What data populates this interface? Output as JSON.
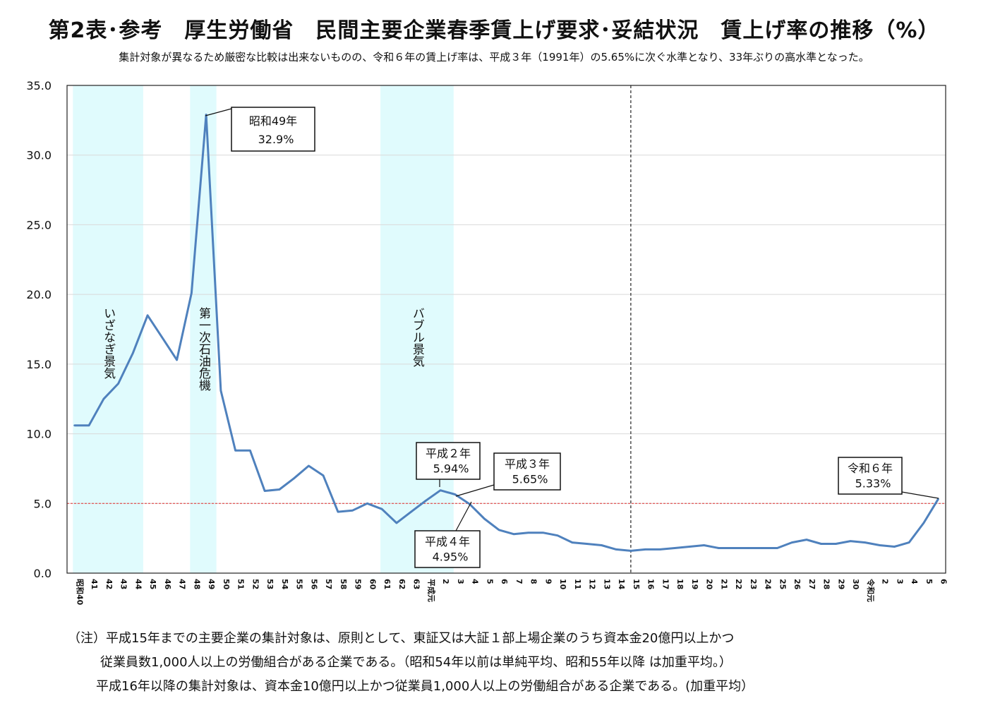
{
  "chart_data": {
    "type": "line",
    "title": "第2表･参考　厚生労働省　民間主要企業春季賃上げ要求･妥結状況　賃上げ率の推移（%）",
    "subtitle": "集計対象が異なるため厳密な比較は出来ないものの、令和６年の賃上げ率は、平成３年（1991年）の5.65%に次ぐ水準となり、33年ぶりの高水準となった。",
    "ylim": [
      0,
      35
    ],
    "y_ticks": [
      "0.0",
      "5.0",
      "10.0",
      "15.0",
      "20.0",
      "25.0",
      "30.0",
      "35.0"
    ],
    "grid": true,
    "reference_line": 5.0,
    "categories": [
      "昭和40",
      "41",
      "42",
      "43",
      "44",
      "45",
      "46",
      "47",
      "48",
      "49",
      "50",
      "51",
      "52",
      "53",
      "54",
      "55",
      "56",
      "57",
      "58",
      "59",
      "60",
      "61",
      "62",
      "63",
      "平成元",
      "2",
      "3",
      "4",
      "5",
      "6",
      "7",
      "8",
      "9",
      "10",
      "11",
      "12",
      "13",
      "14",
      "15",
      "16",
      "17",
      "18",
      "19",
      "20",
      "21",
      "22",
      "23",
      "24",
      "25",
      "26",
      "27",
      "28",
      "29",
      "30",
      "令和元",
      "2",
      "3",
      "4",
      "5",
      "6"
    ],
    "series": [
      {
        "values": [
          10.6,
          10.6,
          12.5,
          13.6,
          15.8,
          18.5,
          16.9,
          15.3,
          20.1,
          32.9,
          13.1,
          8.8,
          8.8,
          5.9,
          6.0,
          6.8,
          7.7,
          7.0,
          4.4,
          4.5,
          5.0,
          4.6,
          3.6,
          4.4,
          5.2,
          5.94,
          5.65,
          4.95,
          3.9,
          3.1,
          2.8,
          2.9,
          2.9,
          2.7,
          2.2,
          2.1,
          2.0,
          1.7,
          1.6,
          1.7,
          1.7,
          1.8,
          1.9,
          2.0,
          1.8,
          1.8,
          1.8,
          1.8,
          1.8,
          2.2,
          2.4,
          2.1,
          2.1,
          2.3,
          2.2,
          2.0,
          1.9,
          2.2,
          3.6,
          5.33
        ],
        "color": "#4f81bd"
      }
    ],
    "shaded_periods": [
      {
        "label": "いざなぎ景気",
        "from_index": 0.4,
        "to_index": 5.2
      },
      {
        "label": "第一次石油危機",
        "from_index": 8.4,
        "to_index": 10.2
      },
      {
        "label": "バブル景気",
        "from_index": 21.4,
        "to_index": 26.4
      }
    ],
    "divider_index": 38.5,
    "annotations": [
      {
        "line1": "昭和49年",
        "line2": "32.9%",
        "index": 9
      },
      {
        "line1": "平成２年",
        "line2": "5.94%",
        "index": 25
      },
      {
        "line1": "平成３年",
        "line2": "5.65%",
        "index": 26
      },
      {
        "line1": "平成４年",
        "line2": "4.95%",
        "index": 27
      },
      {
        "line1": "令和６年",
        "line2": "5.33%",
        "index": 59
      }
    ],
    "colors": {
      "line": "#4f81bd",
      "shade": "#e0fbfd",
      "reference": "#e03030",
      "grid": "#d9d9d9"
    }
  },
  "notes": [
    "（注）平成15年までの主要企業の集計対象は、原則として、東証又は大証１部上場企業のうち資本金20億円以上かつ",
    "従業員数1,000人以上の労働組合がある企業である。（昭和54年以前は単純平均、昭和55年以降 は加重平均。）",
    "平成16年以降の集計対象は、資本金10億円以上かつ従業員1,000人以上の労働組合がある企業である。(加重平均）"
  ]
}
